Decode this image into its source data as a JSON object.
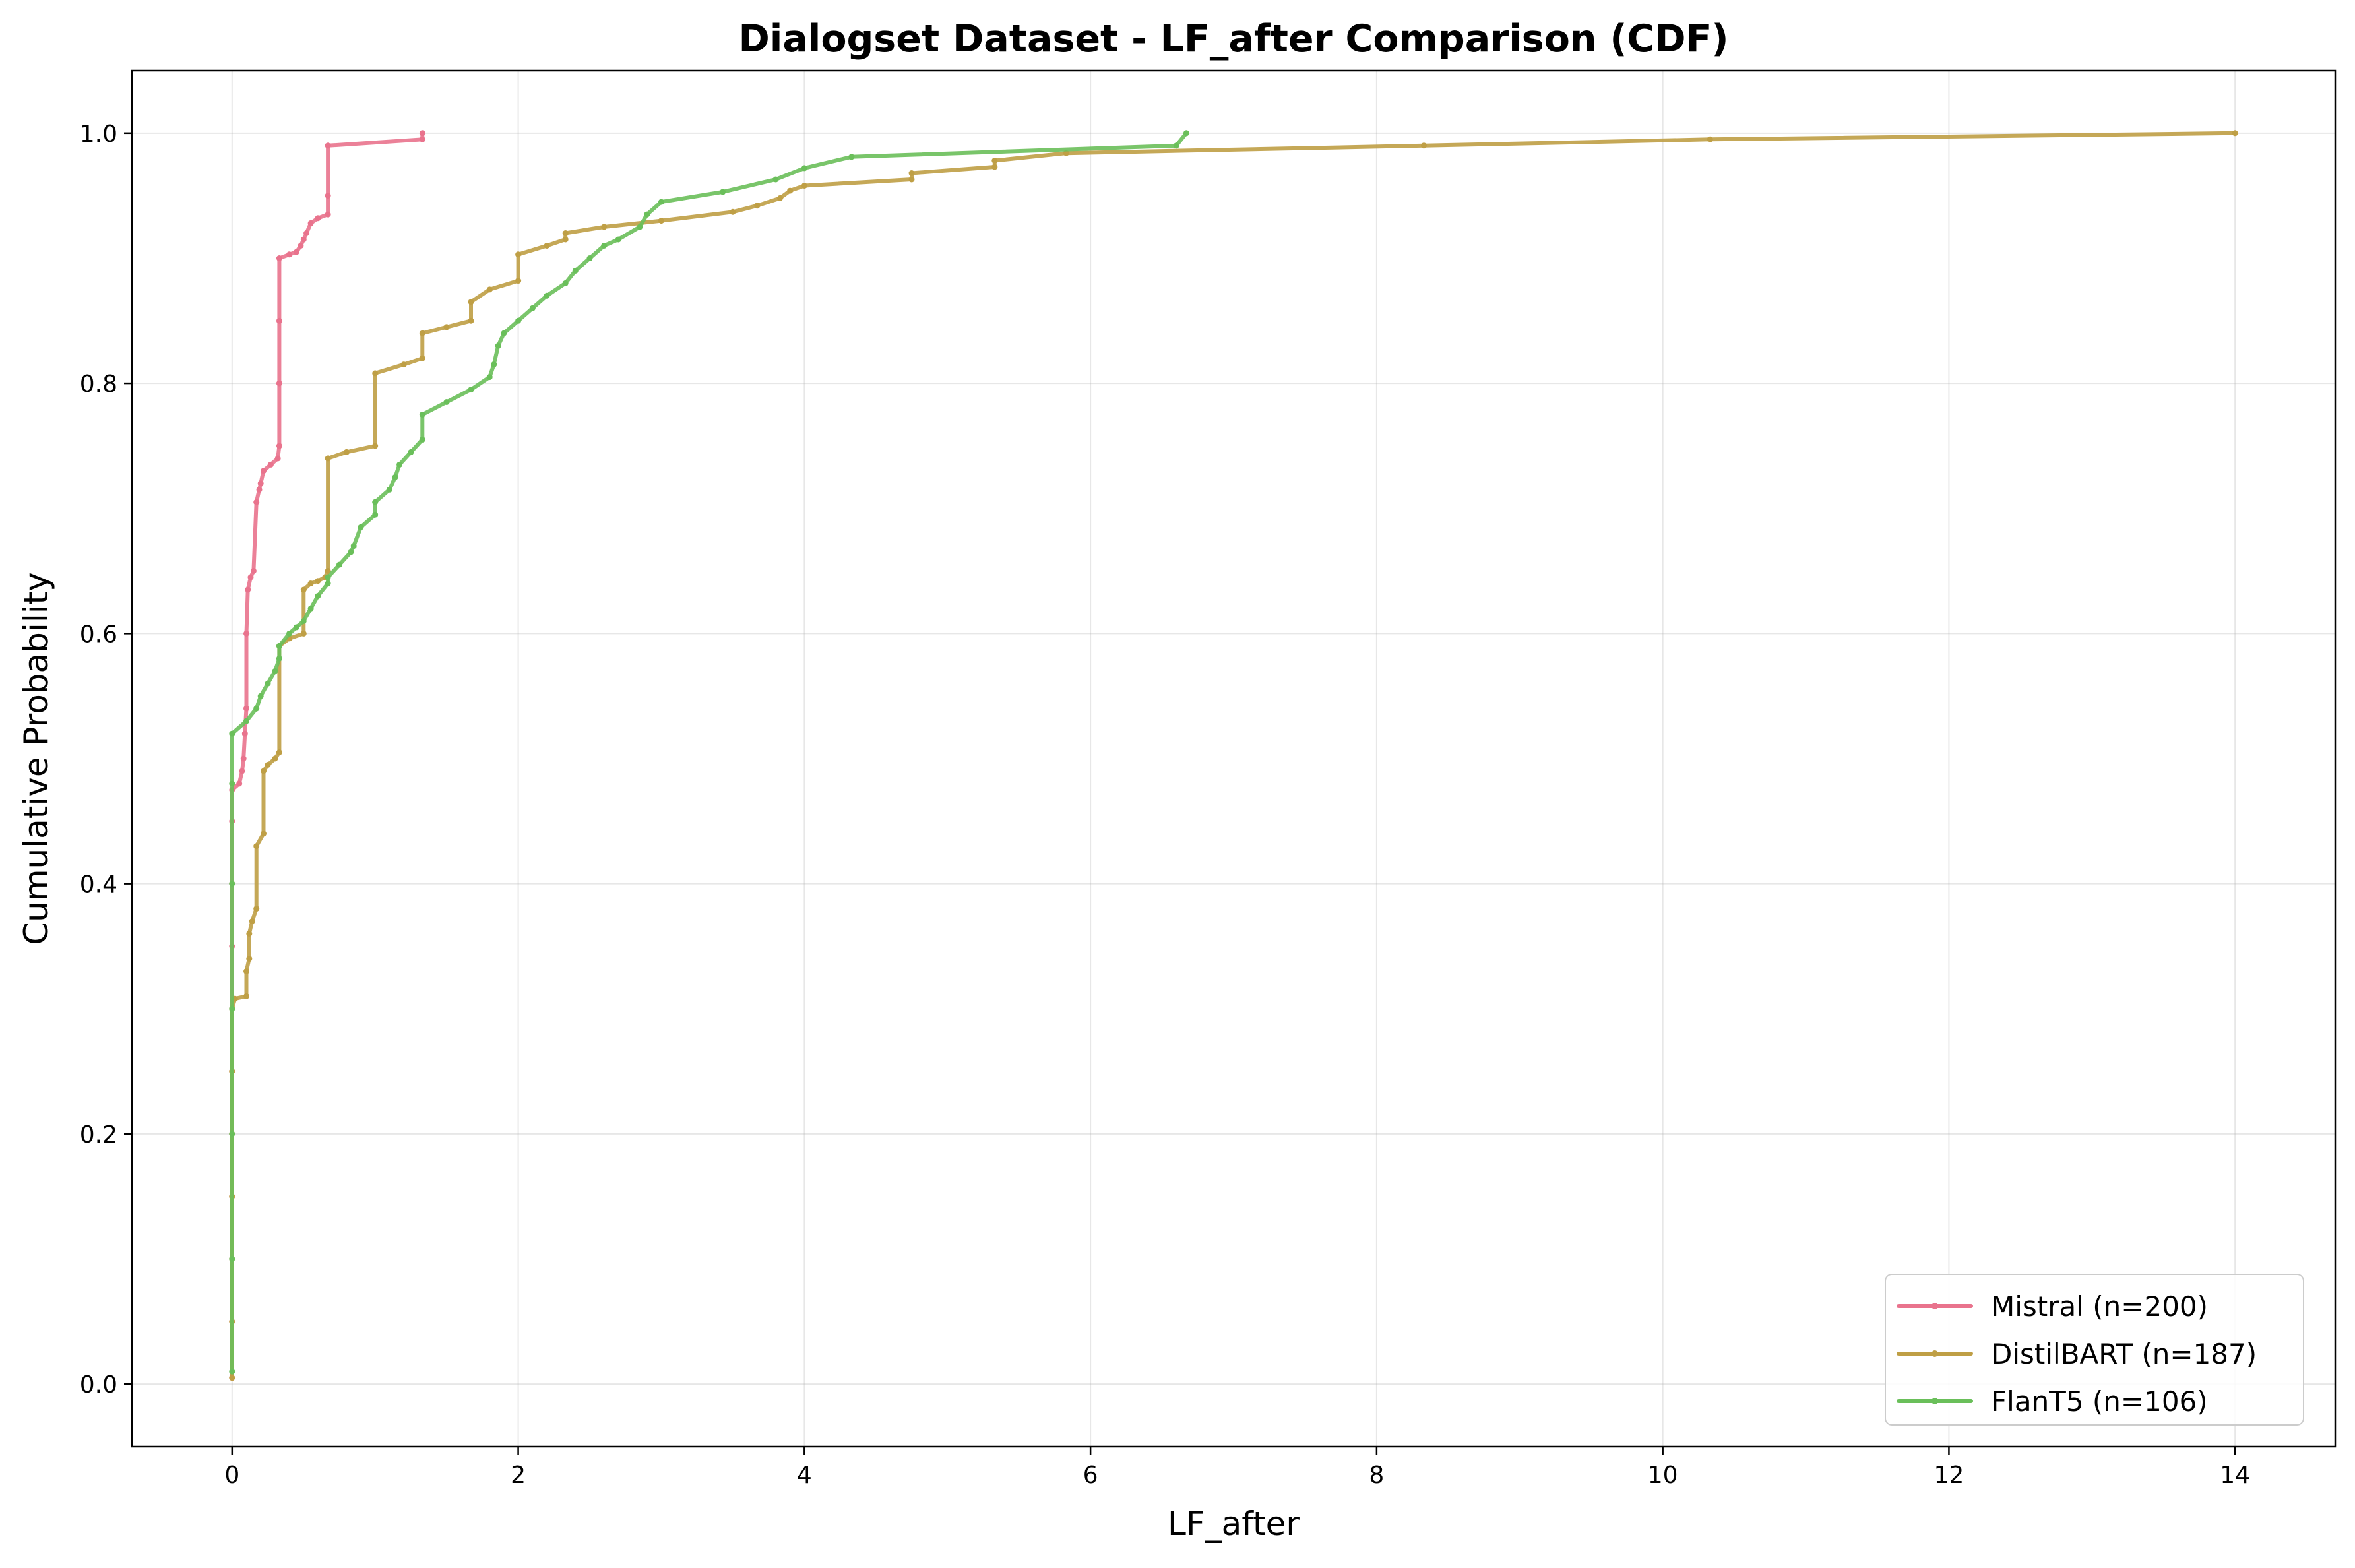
{
  "chart_data": {
    "type": "line",
    "title": "Dialogset Dataset - LF_after Comparison (CDF)",
    "xlabel": "LF_after",
    "ylabel": "Cumulative Probability",
    "xlim": [
      -0.7,
      14.7
    ],
    "ylim": [
      -0.05,
      1.05
    ],
    "xticks": [
      0,
      2,
      4,
      6,
      8,
      10,
      12,
      14
    ],
    "xtick_labels": [
      "0",
      "2",
      "4",
      "6",
      "8",
      "10",
      "12",
      "14"
    ],
    "yticks": [
      0.0,
      0.2,
      0.4,
      0.6,
      0.8,
      1.0
    ],
    "ytick_labels": [
      "0.0",
      "0.2",
      "0.4",
      "0.6",
      "0.8",
      "1.0"
    ],
    "grid": true,
    "legend_position": "lower-right",
    "series": [
      {
        "name": "Mistral (n=200)",
        "color": "#e9738d",
        "points": [
          [
            0.0,
            0.005
          ],
          [
            0.0,
            0.05
          ],
          [
            0.0,
            0.1
          ],
          [
            0.0,
            0.15
          ],
          [
            0.0,
            0.2
          ],
          [
            0.0,
            0.25
          ],
          [
            0.0,
            0.3
          ],
          [
            0.0,
            0.35
          ],
          [
            0.0,
            0.4
          ],
          [
            0.0,
            0.45
          ],
          [
            0.0,
            0.475
          ],
          [
            0.05,
            0.48
          ],
          [
            0.07,
            0.49
          ],
          [
            0.08,
            0.5
          ],
          [
            0.09,
            0.52
          ],
          [
            0.1,
            0.54
          ],
          [
            0.1,
            0.6
          ],
          [
            0.11,
            0.635
          ],
          [
            0.13,
            0.645
          ],
          [
            0.15,
            0.65
          ],
          [
            0.17,
            0.705
          ],
          [
            0.19,
            0.715
          ],
          [
            0.2,
            0.72
          ],
          [
            0.22,
            0.73
          ],
          [
            0.27,
            0.735
          ],
          [
            0.32,
            0.74
          ],
          [
            0.33,
            0.75
          ],
          [
            0.33,
            0.8
          ],
          [
            0.33,
            0.85
          ],
          [
            0.33,
            0.9
          ],
          [
            0.4,
            0.903
          ],
          [
            0.45,
            0.905
          ],
          [
            0.48,
            0.91
          ],
          [
            0.5,
            0.915
          ],
          [
            0.52,
            0.92
          ],
          [
            0.55,
            0.928
          ],
          [
            0.6,
            0.932
          ],
          [
            0.67,
            0.935
          ],
          [
            0.67,
            0.95
          ],
          [
            0.67,
            0.99
          ],
          [
            1.33,
            0.995
          ],
          [
            1.33,
            1.0
          ]
        ]
      },
      {
        "name": "DistilBART (n=187)",
        "color": "#bf9f45",
        "points": [
          [
            0.0,
            0.005
          ],
          [
            0.0,
            0.05
          ],
          [
            0.0,
            0.1
          ],
          [
            0.0,
            0.15
          ],
          [
            0.0,
            0.2
          ],
          [
            0.0,
            0.25
          ],
          [
            0.0,
            0.3
          ],
          [
            0.02,
            0.308
          ],
          [
            0.1,
            0.31
          ],
          [
            0.1,
            0.33
          ],
          [
            0.12,
            0.34
          ],
          [
            0.12,
            0.36
          ],
          [
            0.14,
            0.37
          ],
          [
            0.17,
            0.38
          ],
          [
            0.17,
            0.43
          ],
          [
            0.22,
            0.44
          ],
          [
            0.22,
            0.49
          ],
          [
            0.25,
            0.495
          ],
          [
            0.3,
            0.5
          ],
          [
            0.33,
            0.505
          ],
          [
            0.33,
            0.59
          ],
          [
            0.4,
            0.596
          ],
          [
            0.5,
            0.6
          ],
          [
            0.5,
            0.635
          ],
          [
            0.55,
            0.64
          ],
          [
            0.6,
            0.642
          ],
          [
            0.65,
            0.645
          ],
          [
            0.67,
            0.65
          ],
          [
            0.67,
            0.74
          ],
          [
            0.8,
            0.745
          ],
          [
            1.0,
            0.75
          ],
          [
            1.0,
            0.808
          ],
          [
            1.2,
            0.815
          ],
          [
            1.33,
            0.82
          ],
          [
            1.33,
            0.84
          ],
          [
            1.5,
            0.845
          ],
          [
            1.67,
            0.85
          ],
          [
            1.67,
            0.865
          ],
          [
            1.8,
            0.875
          ],
          [
            2.0,
            0.882
          ],
          [
            2.0,
            0.903
          ],
          [
            2.2,
            0.91
          ],
          [
            2.33,
            0.915
          ],
          [
            2.33,
            0.92
          ],
          [
            2.6,
            0.925
          ],
          [
            3.0,
            0.93
          ],
          [
            3.5,
            0.937
          ],
          [
            3.67,
            0.942
          ],
          [
            3.83,
            0.948
          ],
          [
            3.9,
            0.954
          ],
          [
            4.0,
            0.958
          ],
          [
            4.75,
            0.963
          ],
          [
            4.75,
            0.968
          ],
          [
            5.33,
            0.973
          ],
          [
            5.33,
            0.978
          ],
          [
            5.83,
            0.984
          ],
          [
            8.33,
            0.99
          ],
          [
            10.33,
            0.995
          ],
          [
            14.0,
            1.0
          ]
        ]
      },
      {
        "name": "FlanT5 (n=106)",
        "color": "#6abf5a",
        "points": [
          [
            0.0,
            0.01
          ],
          [
            0.0,
            0.1
          ],
          [
            0.0,
            0.2
          ],
          [
            0.0,
            0.3
          ],
          [
            0.0,
            0.4
          ],
          [
            0.0,
            0.48
          ],
          [
            0.0,
            0.52
          ],
          [
            0.1,
            0.53
          ],
          [
            0.17,
            0.54
          ],
          [
            0.2,
            0.55
          ],
          [
            0.25,
            0.56
          ],
          [
            0.3,
            0.57
          ],
          [
            0.33,
            0.58
          ],
          [
            0.33,
            0.59
          ],
          [
            0.4,
            0.6
          ],
          [
            0.45,
            0.605
          ],
          [
            0.5,
            0.61
          ],
          [
            0.55,
            0.62
          ],
          [
            0.6,
            0.63
          ],
          [
            0.67,
            0.64
          ],
          [
            0.67,
            0.645
          ],
          [
            0.75,
            0.655
          ],
          [
            0.83,
            0.665
          ],
          [
            0.85,
            0.67
          ],
          [
            0.9,
            0.685
          ],
          [
            1.0,
            0.695
          ],
          [
            1.0,
            0.705
          ],
          [
            1.1,
            0.715
          ],
          [
            1.14,
            0.725
          ],
          [
            1.17,
            0.735
          ],
          [
            1.25,
            0.745
          ],
          [
            1.33,
            0.755
          ],
          [
            1.33,
            0.775
          ],
          [
            1.5,
            0.785
          ],
          [
            1.67,
            0.795
          ],
          [
            1.8,
            0.805
          ],
          [
            1.83,
            0.815
          ],
          [
            1.86,
            0.83
          ],
          [
            1.9,
            0.84
          ],
          [
            2.0,
            0.85
          ],
          [
            2.1,
            0.86
          ],
          [
            2.2,
            0.87
          ],
          [
            2.33,
            0.88
          ],
          [
            2.4,
            0.89
          ],
          [
            2.5,
            0.9
          ],
          [
            2.6,
            0.91
          ],
          [
            2.7,
            0.915
          ],
          [
            2.85,
            0.925
          ],
          [
            2.9,
            0.935
          ],
          [
            3.0,
            0.945
          ],
          [
            3.43,
            0.953
          ],
          [
            3.8,
            0.963
          ],
          [
            4.0,
            0.972
          ],
          [
            4.33,
            0.981
          ],
          [
            6.6,
            0.99
          ],
          [
            6.67,
            1.0
          ]
        ]
      }
    ]
  }
}
